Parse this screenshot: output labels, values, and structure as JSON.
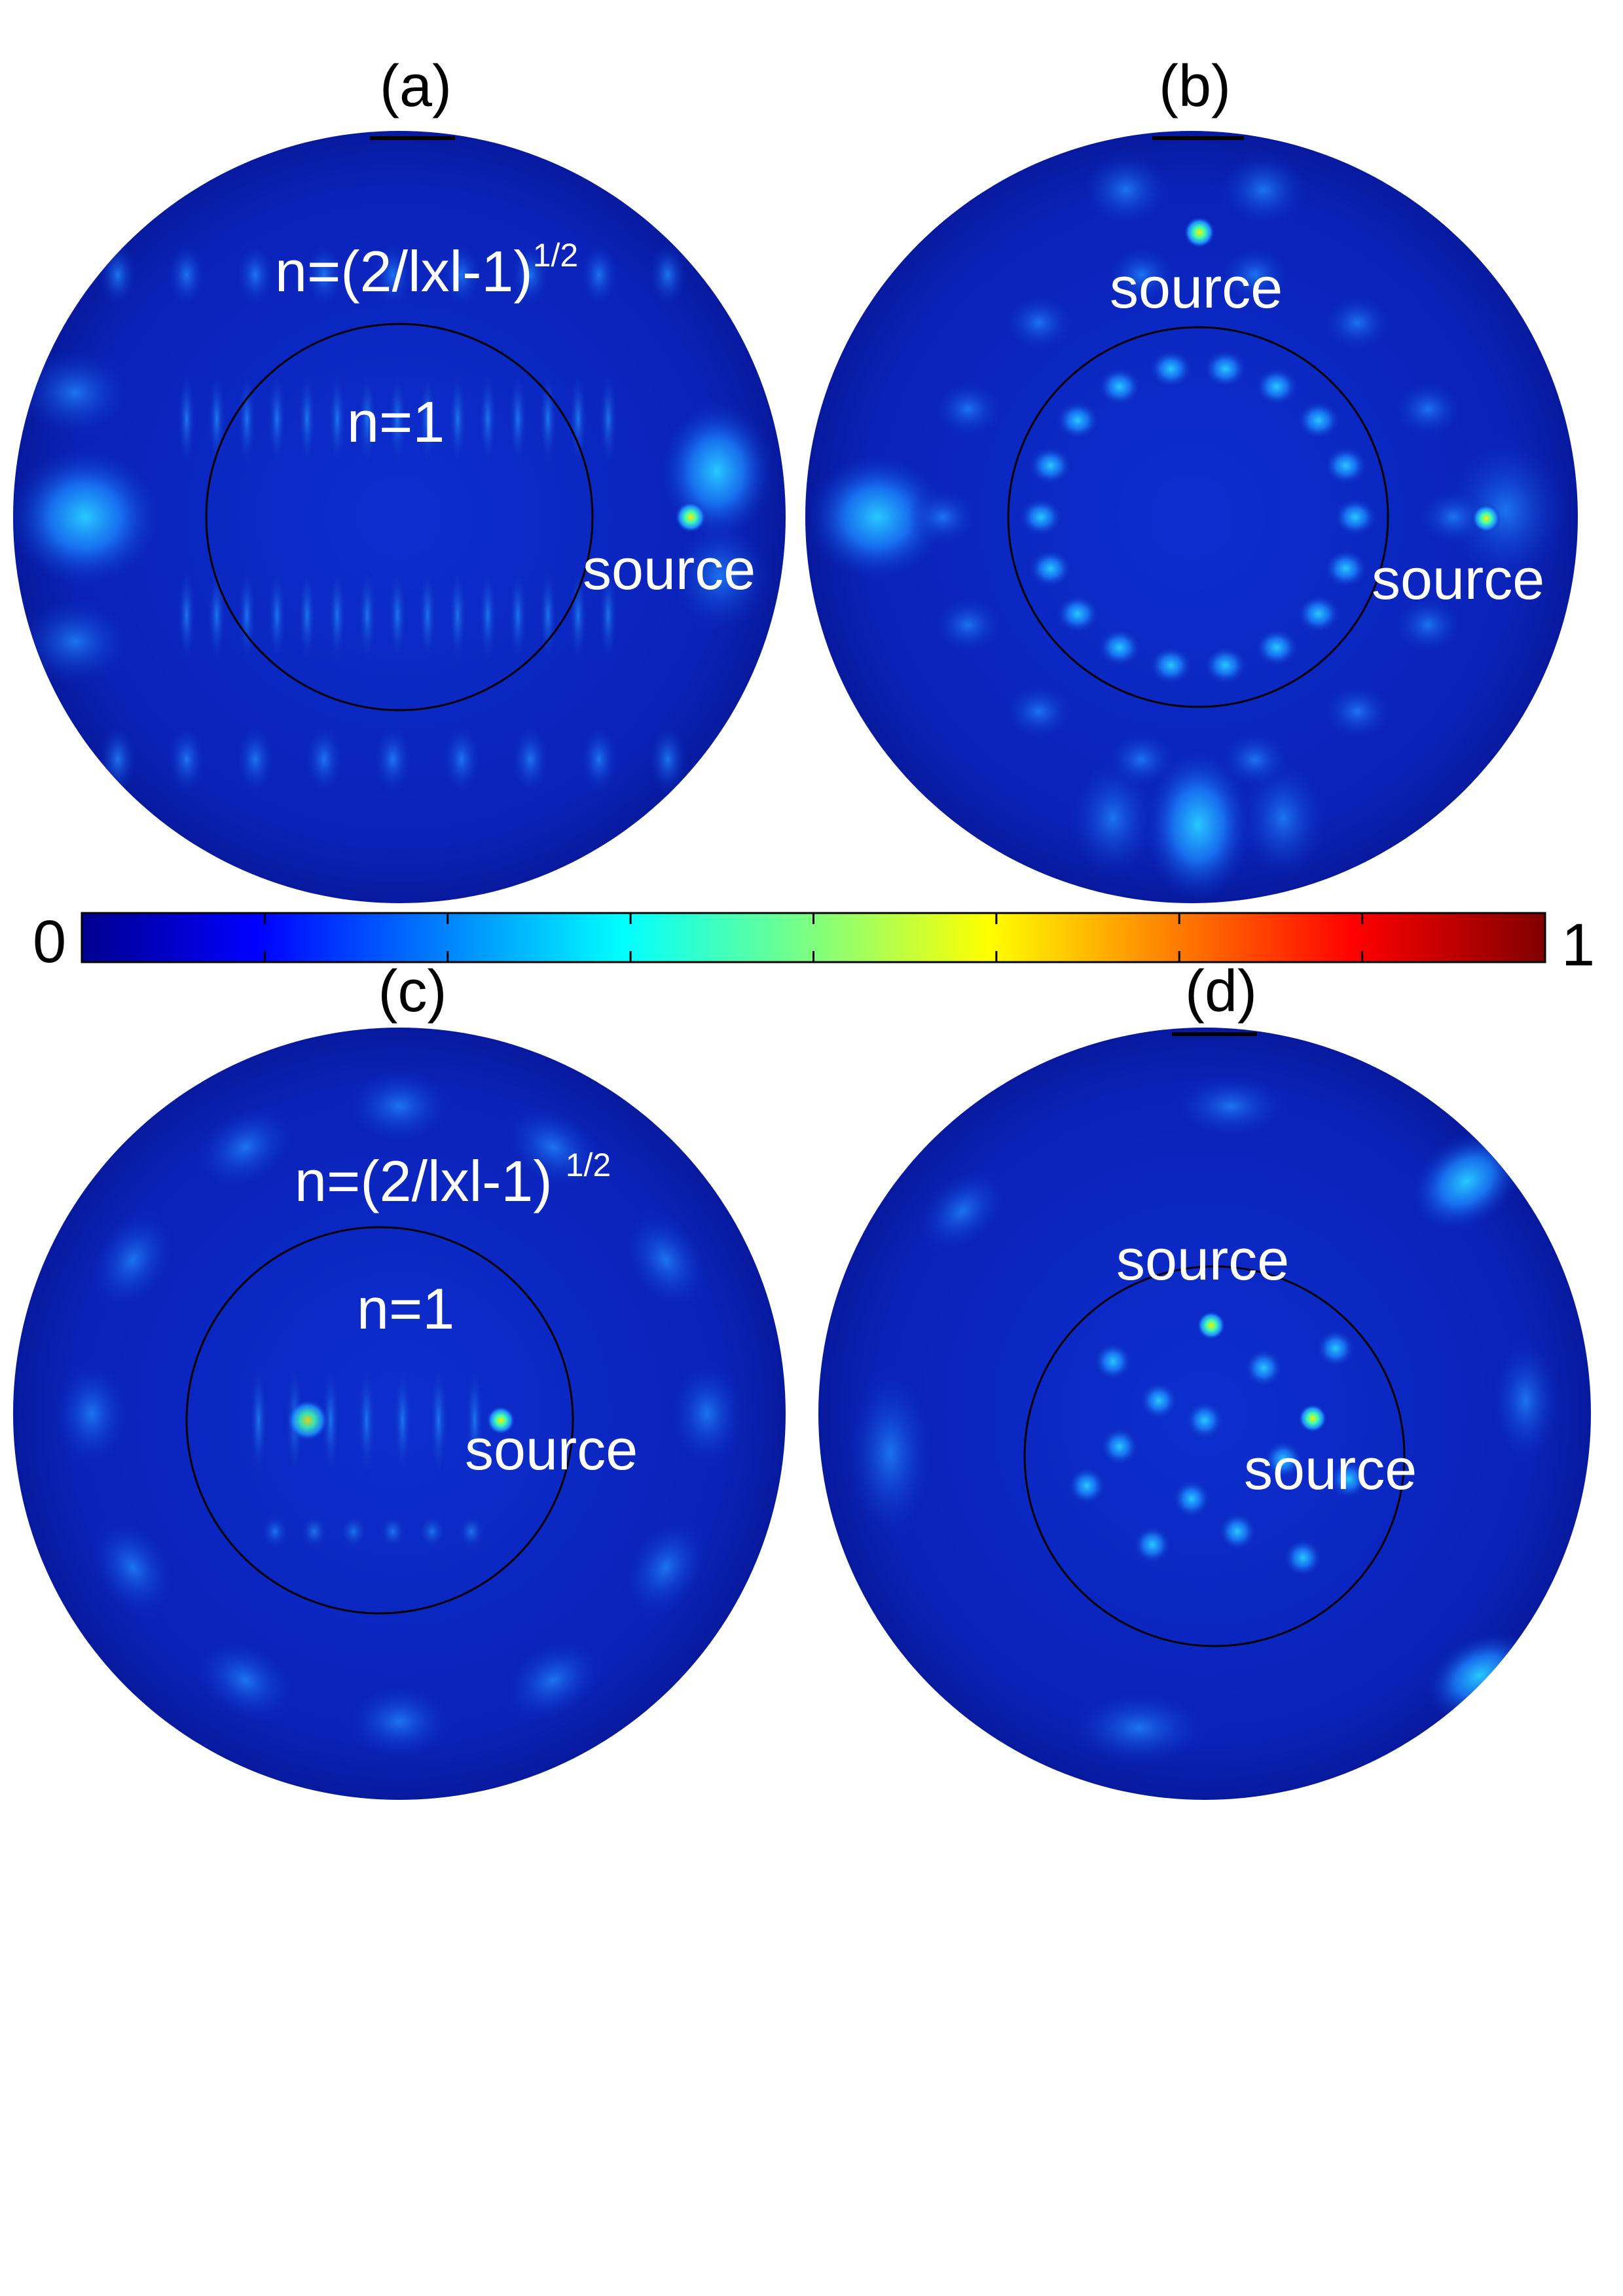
{
  "panels": [
    {
      "id": "a",
      "label": "(a)",
      "outer_annotation": "n=(2/lxl-1)",
      "outer_exponent": "1/2",
      "inner_annotation": "n=1",
      "sources": [
        "source"
      ]
    },
    {
      "id": "b",
      "label": "(b)",
      "sources": [
        "source",
        "source"
      ]
    },
    {
      "id": "c",
      "label": "(c)",
      "outer_annotation": "n=(2/lxl-1)",
      "outer_exponent": "1/2",
      "inner_annotation": "n=1",
      "sources": [
        "source"
      ]
    },
    {
      "id": "d",
      "label": "(d)",
      "sources": [
        "source",
        "source"
      ]
    }
  ],
  "colorbar": {
    "min_label": "0",
    "max_label": "1",
    "colormap": "jet",
    "colors": [
      "#00008f",
      "#0000ff",
      "#00ffff",
      "#ffff00",
      "#ff0000",
      "#800000"
    ]
  },
  "field_colors": {
    "background": "#0a1fb0",
    "bright": "#22c8ff",
    "peak": "#ffee00"
  }
}
